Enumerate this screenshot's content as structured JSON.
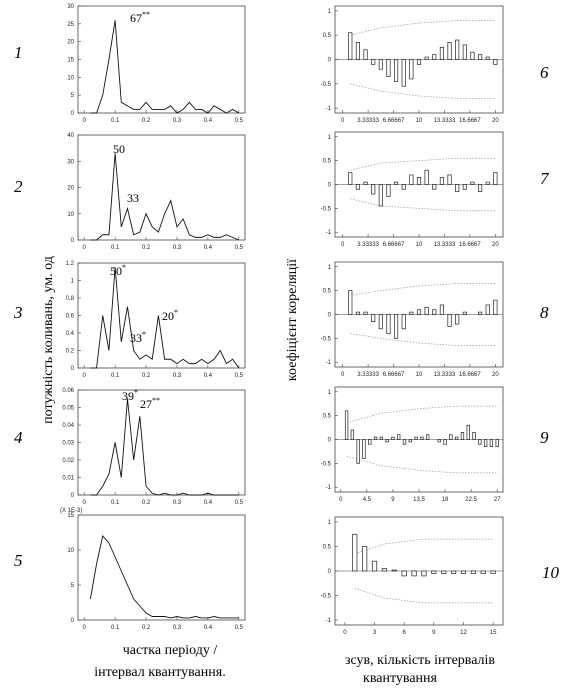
{
  "y_label_left": "потужність коливань, ум. од",
  "y_label_right": "коефіцієнт кореляції",
  "x_label_left": [
    "частка періоду /",
    "інтервал квантування."
  ],
  "x_label_right": [
    "зсув, кількість інтервалів",
    "квантування"
  ],
  "chart_data": [
    {
      "type": "line",
      "number": "1",
      "x": [
        0.02,
        0.04,
        0.06,
        0.08,
        0.1,
        0.12,
        0.14,
        0.16,
        0.18,
        0.2,
        0.22,
        0.24,
        0.26,
        0.28,
        0.3,
        0.32,
        0.34,
        0.36,
        0.38,
        0.4,
        0.42,
        0.44,
        0.46,
        0.48,
        0.5
      ],
      "values": [
        0,
        0,
        5,
        15,
        26,
        3,
        2,
        1,
        1,
        3,
        1,
        1,
        1,
        2,
        0,
        1,
        3,
        1,
        1,
        0,
        2,
        1,
        0,
        1,
        0
      ],
      "xlim": [
        -0.02,
        0.52
      ],
      "ylim": [
        0,
        30
      ],
      "xticks": [
        0,
        0.1,
        0.2,
        0.3,
        0.4,
        0.5
      ],
      "yticks": [
        0,
        5,
        10,
        15,
        20,
        25,
        30
      ],
      "annotations": [
        {
          "text": "67",
          "mark": "**"
        }
      ]
    },
    {
      "type": "line",
      "number": "2",
      "x": [
        0.02,
        0.04,
        0.06,
        0.08,
        0.1,
        0.12,
        0.14,
        0.16,
        0.18,
        0.2,
        0.22,
        0.24,
        0.26,
        0.28,
        0.3,
        0.32,
        0.34,
        0.36,
        0.38,
        0.4,
        0.42,
        0.44,
        0.46,
        0.48,
        0.5
      ],
      "values": [
        0,
        0,
        2,
        2,
        33,
        5,
        12,
        2,
        3,
        10,
        5,
        3,
        10,
        15,
        5,
        8,
        2,
        1,
        1,
        2,
        1,
        1,
        2,
        1,
        0
      ],
      "xlim": [
        -0.02,
        0.52
      ],
      "ylim": [
        0,
        40
      ],
      "xticks": [
        0,
        0.1,
        0.2,
        0.3,
        0.4,
        0.5
      ],
      "yticks": [
        0,
        10,
        20,
        30,
        40
      ],
      "annotations": [
        {
          "text": "50",
          "mark": ""
        },
        {
          "text": "33",
          "mark": ""
        }
      ]
    },
    {
      "type": "line",
      "number": "3",
      "x": [
        0.02,
        0.04,
        0.06,
        0.08,
        0.1,
        0.12,
        0.14,
        0.16,
        0.18,
        0.2,
        0.22,
        0.24,
        0.26,
        0.28,
        0.3,
        0.32,
        0.34,
        0.36,
        0.38,
        0.4,
        0.42,
        0.44,
        0.46,
        0.48,
        0.5
      ],
      "values": [
        0,
        0,
        0.6,
        0.2,
        1.15,
        0.3,
        0.7,
        0.2,
        0.1,
        0.15,
        0.1,
        0.6,
        0.1,
        0.1,
        0.05,
        0.1,
        0.05,
        0.05,
        0.1,
        0.05,
        0.1,
        0.2,
        0.05,
        0.1,
        0
      ],
      "xlim": [
        -0.02,
        0.52
      ],
      "ylim": [
        0,
        1.2
      ],
      "xticks": [
        0,
        0.1,
        0.2,
        0.3,
        0.4,
        0.5
      ],
      "yticks": [
        0,
        0.2,
        0.4,
        0.6,
        0.8,
        1,
        1.2
      ],
      "annotations": [
        {
          "text": "50",
          "mark": "*"
        },
        {
          "text": "33",
          "mark": "*"
        },
        {
          "text": "20",
          "mark": "*"
        }
      ]
    },
    {
      "type": "line",
      "number": "4",
      "x": [
        0.02,
        0.04,
        0.06,
        0.08,
        0.1,
        0.12,
        0.14,
        0.16,
        0.18,
        0.2,
        0.22,
        0.24,
        0.26,
        0.28,
        0.3,
        0.32,
        0.34,
        0.36,
        0.38,
        0.4,
        0.42,
        0.44,
        0.46,
        0.48,
        0.5
      ],
      "values": [
        0,
        0,
        0.005,
        0.012,
        0.03,
        0.01,
        0.055,
        0.02,
        0.045,
        0.005,
        0.001,
        0,
        0.001,
        0,
        0,
        0.001,
        0,
        0,
        0,
        0.001,
        0,
        0,
        0,
        0,
        0
      ],
      "xlim": [
        -0.02,
        0.52
      ],
      "ylim": [
        0,
        0.06
      ],
      "xticks": [
        0,
        0.1,
        0.2,
        0.3,
        0.4,
        0.5
      ],
      "yticks": [
        0,
        0.01,
        0.02,
        0.03,
        0.04,
        0.05,
        0.06
      ],
      "annotations": [
        {
          "text": "39",
          "mark": "*"
        },
        {
          "text": "27",
          "mark": "**"
        }
      ]
    },
    {
      "type": "line",
      "number": "5",
      "scale_note": "(X 1E-3)",
      "x": [
        0.02,
        0.04,
        0.06,
        0.08,
        0.1,
        0.12,
        0.14,
        0.16,
        0.18,
        0.2,
        0.22,
        0.24,
        0.26,
        0.28,
        0.3,
        0.32,
        0.34,
        0.36,
        0.38,
        0.4,
        0.42,
        0.44,
        0.46,
        0.48,
        0.5
      ],
      "values": [
        3,
        8,
        12,
        11,
        9,
        7,
        5,
        3,
        2,
        1,
        0.5,
        0.5,
        0.5,
        0.3,
        0.5,
        0.3,
        0.3,
        0.5,
        0.3,
        0.3,
        0.5,
        0.3,
        0.3,
        0.3,
        0.3
      ],
      "xlim": [
        -0.02,
        0.52
      ],
      "ylim": [
        0,
        15
      ],
      "xticks": [
        0,
        0.1,
        0.2,
        0.3,
        0.4,
        0.5
      ],
      "yticks": [
        0,
        5,
        10,
        15
      ],
      "annotations": []
    },
    {
      "type": "bar",
      "number": "6",
      "x": [
        1,
        2,
        3,
        4,
        5,
        6,
        7,
        8,
        9,
        10,
        11,
        12,
        13,
        14,
        15,
        16,
        17,
        18,
        19,
        20
      ],
      "values": [
        0.55,
        0.35,
        0.2,
        -0.1,
        -0.2,
        -0.35,
        -0.45,
        -0.55,
        -0.4,
        -0.1,
        0.05,
        0.1,
        0.25,
        0.35,
        0.4,
        0.3,
        0.15,
        0.1,
        0.05,
        -0.1
      ],
      "band_x": [
        1,
        5,
        10,
        15,
        20
      ],
      "band_upper": [
        0.5,
        0.65,
        0.75,
        0.8,
        0.8
      ],
      "band_lower": [
        -0.5,
        -0.65,
        -0.75,
        -0.8,
        -0.8
      ],
      "xlim": [
        -1,
        21
      ],
      "ylim": [
        -1.1,
        1.1
      ],
      "xticks": [
        0,
        {
          "value": 3.3333,
          "label": "3.33333"
        },
        {
          "value": 6.6667,
          "label": "6.66667"
        },
        10,
        13.3333,
        16.6667,
        20
      ],
      "yticks": [
        -1,
        -0.5,
        0,
        0.5,
        1
      ]
    },
    {
      "type": "bar",
      "number": "7",
      "x": [
        1,
        2,
        3,
        4,
        5,
        6,
        7,
        8,
        9,
        10,
        11,
        12,
        13,
        14,
        15,
        16,
        17,
        18,
        19,
        20
      ],
      "values": [
        0.25,
        -0.1,
        0.05,
        -0.2,
        -0.45,
        -0.25,
        0.05,
        -0.1,
        0.2,
        0.15,
        0.3,
        -0.1,
        0.15,
        0.2,
        -0.15,
        -0.1,
        0.05,
        -0.15,
        0.05,
        0.25
      ],
      "band_x": [
        1,
        5,
        10,
        15,
        20
      ],
      "band_upper": [
        0.3,
        0.45,
        0.5,
        0.55,
        0.55
      ],
      "band_lower": [
        -0.3,
        -0.45,
        -0.5,
        -0.55,
        -0.55
      ],
      "xlim": [
        -1,
        21
      ],
      "ylim": [
        -1.1,
        1.1
      ],
      "xticks": [
        0,
        {
          "value": 3.3333,
          "label": "3.33333"
        },
        {
          "value": 6.6667,
          "label": "6.66667"
        },
        10,
        13.3333,
        16.6667,
        20
      ],
      "yticks": [
        -1,
        -0.5,
        0,
        0.5,
        1
      ]
    },
    {
      "type": "bar",
      "number": "8",
      "x": [
        1,
        2,
        3,
        4,
        5,
        6,
        7,
        8,
        9,
        10,
        11,
        12,
        13,
        14,
        15,
        16,
        17,
        18,
        19,
        20
      ],
      "values": [
        0.5,
        0.05,
        0.05,
        -0.15,
        -0.3,
        -0.4,
        -0.5,
        -0.3,
        0.05,
        0.1,
        0.15,
        0.1,
        0.2,
        -0.25,
        -0.2,
        0.05,
        0,
        0.05,
        0.2,
        0.3
      ],
      "band_x": [
        1,
        5,
        10,
        15,
        20
      ],
      "band_upper": [
        0.4,
        0.5,
        0.6,
        0.65,
        0.65
      ],
      "band_lower": [
        -0.4,
        -0.5,
        -0.6,
        -0.65,
        -0.65
      ],
      "xlim": [
        -1,
        21
      ],
      "ylim": [
        -1.1,
        1.1
      ],
      "xticks": [
        0,
        {
          "value": 3.3333,
          "label": "3.33333"
        },
        {
          "value": 6.6667,
          "label": "6.66667"
        },
        10,
        13.3333,
        16.6667,
        20
      ],
      "yticks": [
        -1,
        -0.5,
        0,
        0.5,
        1
      ]
    },
    {
      "type": "bar",
      "number": "9",
      "x": [
        1,
        2,
        3,
        4,
        5,
        6,
        7,
        8,
        9,
        10,
        11,
        12,
        13,
        14,
        15,
        16,
        17,
        18,
        19,
        20,
        21,
        22,
        23,
        24,
        25,
        26,
        27
      ],
      "values": [
        0.6,
        0.2,
        -0.5,
        -0.4,
        -0.1,
        0.05,
        0.05,
        -0.05,
        0.05,
        0.1,
        -0.1,
        -0.05,
        0.05,
        0.05,
        0.1,
        0,
        -0.05,
        -0.1,
        0.1,
        0.05,
        0.15,
        0.3,
        0.15,
        -0.1,
        -0.15,
        -0.15,
        -0.15
      ],
      "band_x": [
        1,
        7,
        14,
        20,
        27
      ],
      "band_upper": [
        0.35,
        0.55,
        0.65,
        0.7,
        0.7
      ],
      "band_lower": [
        -0.35,
        -0.55,
        -0.65,
        -0.7,
        -0.7
      ],
      "xlim": [
        -1,
        28
      ],
      "ylim": [
        -1.1,
        1.1
      ],
      "xticks": [
        0,
        4.5,
        9,
        13.5,
        18,
        22.5,
        27
      ],
      "yticks": [
        -1,
        -0.5,
        0,
        0.5,
        1
      ]
    },
    {
      "type": "bar",
      "number": "10",
      "x": [
        1,
        2,
        3,
        4,
        5,
        6,
        7,
        8,
        9,
        10,
        11,
        12,
        13,
        14,
        15
      ],
      "values": [
        0.75,
        0.5,
        0.2,
        0.05,
        0.02,
        -0.1,
        -0.1,
        -0.1,
        -0.05,
        -0.05,
        -0.05,
        -0.05,
        -0.05,
        -0.05,
        -0.05
      ],
      "band_x": [
        1,
        4,
        8,
        12,
        15
      ],
      "band_upper": [
        0.35,
        0.55,
        0.65,
        0.65,
        0.65
      ],
      "band_lower": [
        -0.35,
        -0.55,
        -0.65,
        -0.65,
        -0.65
      ],
      "xlim": [
        -1,
        16
      ],
      "ylim": [
        -1.1,
        1.1
      ],
      "xticks": [
        0,
        3,
        6,
        9,
        12,
        15
      ],
      "yticks": [
        -1,
        -0.5,
        0,
        0.5,
        1
      ]
    }
  ]
}
